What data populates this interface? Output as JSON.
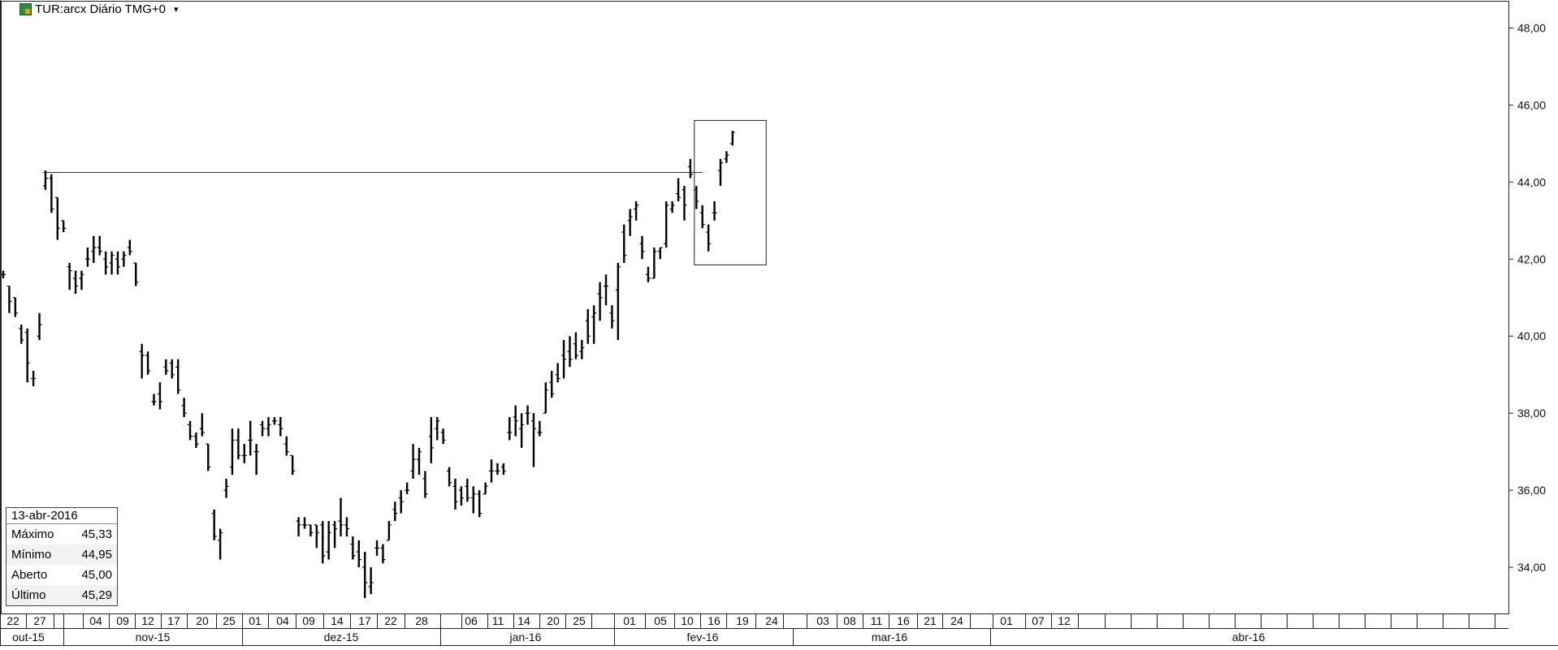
{
  "header": {
    "title": "TUR:arcx Diário TMG+0"
  },
  "info": {
    "date": "13-abr-2016",
    "rows": [
      {
        "label": "Máximo",
        "value": "45,33"
      },
      {
        "label": "Mínimo",
        "value": "44,95"
      },
      {
        "label": "Aberto",
        "value": "45,00"
      },
      {
        "label": "Último",
        "value": "45,29"
      }
    ]
  },
  "chart_data": {
    "type": "ohlc",
    "ylim": [
      32.8,
      48.6
    ],
    "y_ticks": [
      "34,00",
      "36,00",
      "38,00",
      "40,00",
      "42,00",
      "44,00",
      "46,00",
      "48,00"
    ],
    "x_day_labels": [
      "22",
      "27",
      "04",
      "09",
      "12",
      "17",
      "20",
      "25",
      "01",
      "04",
      "09",
      "14",
      "17",
      "22",
      "28",
      "06",
      "11",
      "14",
      "20",
      "25",
      "01",
      "05",
      "10",
      "16",
      "19",
      "24",
      "03",
      "08",
      "11",
      "16",
      "21",
      "24",
      "01",
      "07",
      "12"
    ],
    "x_month_labels": [
      "out-15",
      "nov-15",
      "dez-15",
      "jan-16",
      "fev-16",
      "mar-16",
      "abr-16"
    ],
    "resistance_level": 44.25,
    "highlight_box": {
      "y_low": 41.85,
      "y_high": 45.6
    },
    "bars": [
      [
        41.6,
        41.7,
        41.5,
        41.6
      ],
      [
        41.3,
        41.3,
        40.6,
        40.9
      ],
      [
        41.0,
        41.0,
        40.5,
        40.6
      ],
      [
        40.2,
        40.3,
        39.8,
        39.9
      ],
      [
        40.1,
        40.2,
        38.8,
        39.3
      ],
      [
        38.9,
        39.1,
        38.7,
        38.9
      ],
      [
        40.0,
        40.6,
        39.9,
        40.3
      ],
      [
        43.9,
        44.3,
        43.8,
        44.1
      ],
      [
        44.1,
        44.2,
        43.2,
        43.3
      ],
      [
        43.6,
        43.6,
        42.5,
        42.8
      ],
      [
        43.0,
        43.0,
        42.7,
        42.8
      ],
      [
        41.8,
        41.9,
        41.2,
        41.7
      ],
      [
        41.5,
        41.7,
        41.1,
        41.3
      ],
      [
        41.5,
        41.7,
        41.2,
        41.6
      ],
      [
        42.0,
        42.3,
        41.8,
        42.0
      ],
      [
        42.2,
        42.6,
        41.9,
        42.3
      ],
      [
        42.3,
        42.6,
        42.1,
        42.2
      ],
      [
        42.0,
        42.2,
        41.6,
        41.8
      ],
      [
        41.9,
        42.2,
        41.6,
        42.1
      ],
      [
        42.0,
        42.2,
        41.6,
        41.8
      ],
      [
        42.0,
        42.2,
        41.8,
        42.1
      ],
      [
        42.3,
        42.5,
        42.1,
        42.2
      ],
      [
        41.9,
        41.9,
        41.3,
        41.4
      ],
      [
        39.6,
        39.8,
        38.9,
        39.5
      ],
      [
        39.5,
        39.6,
        39.0,
        39.1
      ],
      [
        38.3,
        38.5,
        38.2,
        38.3
      ],
      [
        38.5,
        38.8,
        38.1,
        38.3
      ],
      [
        39.2,
        39.4,
        39.0,
        39.1
      ],
      [
        39.3,
        39.4,
        38.9,
        39.0
      ],
      [
        39.2,
        39.4,
        38.5,
        38.6
      ],
      [
        38.2,
        38.4,
        37.9,
        38.0
      ],
      [
        37.7,
        37.8,
        37.3,
        37.4
      ],
      [
        37.4,
        37.5,
        37.1,
        37.2
      ],
      [
        37.6,
        38.0,
        37.4,
        37.5
      ],
      [
        37.2,
        37.2,
        36.5,
        36.6
      ],
      [
        35.4,
        35.5,
        34.7,
        34.8
      ],
      [
        34.7,
        35.0,
        34.2,
        34.9
      ],
      [
        36.0,
        36.3,
        35.8,
        36.1
      ],
      [
        36.6,
        37.6,
        36.4,
        37.3
      ],
      [
        37.3,
        37.6,
        36.8,
        36.9
      ],
      [
        36.9,
        37.2,
        36.7,
        36.9
      ],
      [
        37.3,
        37.8,
        36.9,
        37.3
      ],
      [
        37.0,
        37.2,
        36.4,
        37.0
      ],
      [
        37.7,
        37.8,
        37.4,
        37.6
      ],
      [
        37.6,
        37.9,
        37.4,
        37.7
      ],
      [
        37.8,
        37.9,
        37.7,
        37.8
      ],
      [
        37.7,
        37.9,
        37.4,
        37.6
      ],
      [
        37.2,
        37.4,
        36.9,
        37.0
      ],
      [
        36.9,
        36.9,
        36.4,
        36.5
      ],
      [
        35.2,
        35.3,
        34.8,
        35.1
      ],
      [
        35.1,
        35.3,
        35.0,
        35.1
      ],
      [
        35.1,
        35.1,
        34.8,
        34.9
      ],
      [
        35.1,
        35.1,
        34.5,
        34.9
      ],
      [
        35.1,
        35.2,
        34.1,
        34.3
      ],
      [
        34.4,
        35.2,
        34.2,
        34.9
      ],
      [
        35.1,
        35.2,
        34.5,
        35.0
      ],
      [
        35.2,
        35.8,
        34.8,
        35.1
      ],
      [
        35.1,
        35.3,
        34.8,
        35.0
      ],
      [
        34.6,
        34.8,
        34.2,
        34.3
      ],
      [
        34.4,
        34.7,
        34.0,
        34.2
      ],
      [
        34.0,
        34.4,
        33.2,
        33.6
      ],
      [
        33.5,
        34.0,
        33.3,
        33.6
      ],
      [
        34.5,
        34.7,
        34.3,
        34.5
      ],
      [
        34.5,
        34.6,
        34.1,
        34.2
      ],
      [
        34.7,
        35.2,
        34.7,
        35.1
      ],
      [
        35.5,
        35.7,
        35.2,
        35.4
      ],
      [
        35.8,
        36.0,
        35.4,
        35.7
      ],
      [
        36.0,
        36.2,
        35.9,
        36.0
      ],
      [
        36.5,
        37.2,
        36.3,
        36.8
      ],
      [
        36.8,
        37.1,
        36.4,
        37.0
      ],
      [
        36.3,
        36.5,
        35.8,
        35.9
      ],
      [
        37.4,
        37.9,
        36.7,
        37.1
      ],
      [
        37.6,
        37.9,
        37.3,
        37.8
      ],
      [
        37.5,
        37.6,
        37.2,
        37.3
      ],
      [
        36.5,
        36.6,
        36.1,
        36.2
      ],
      [
        36.1,
        36.3,
        35.5,
        35.7
      ],
      [
        36.0,
        36.1,
        35.6,
        35.8
      ],
      [
        36.1,
        36.3,
        35.7,
        35.8
      ],
      [
        35.8,
        36.1,
        35.4,
        35.9
      ],
      [
        35.9,
        36.0,
        35.3,
        35.4
      ],
      [
        35.9,
        36.2,
        35.9,
        36.1
      ],
      [
        36.5,
        36.8,
        36.2,
        36.5
      ],
      [
        36.5,
        36.7,
        36.4,
        36.5
      ],
      [
        36.6,
        36.7,
        36.4,
        36.5
      ],
      [
        37.5,
        37.9,
        37.3,
        37.5
      ],
      [
        37.9,
        38.2,
        37.4,
        37.8
      ],
      [
        37.6,
        38.0,
        37.1,
        37.7
      ],
      [
        38.0,
        38.2,
        37.7,
        38.0
      ],
      [
        37.8,
        38.0,
        36.6,
        37.6
      ],
      [
        37.5,
        37.8,
        37.4,
        37.5
      ],
      [
        38.0,
        38.8,
        38.0,
        38.6
      ],
      [
        38.8,
        39.1,
        38.4,
        38.5
      ],
      [
        39.0,
        39.3,
        38.8,
        38.9
      ],
      [
        39.5,
        39.9,
        38.9,
        39.4
      ],
      [
        39.6,
        40.0,
        39.2,
        39.4
      ],
      [
        39.8,
        40.1,
        39.4,
        39.5
      ],
      [
        39.6,
        39.9,
        39.4,
        39.7
      ],
      [
        40.4,
        40.7,
        39.8,
        40.0
      ],
      [
        40.5,
        40.8,
        39.8,
        40.6
      ],
      [
        41.1,
        41.4,
        40.4,
        41.0
      ],
      [
        41.3,
        41.6,
        40.8,
        41.3
      ],
      [
        40.6,
        40.8,
        40.2,
        40.4
      ],
      [
        41.2,
        41.9,
        39.9,
        41.8
      ],
      [
        42.7,
        42.9,
        41.9,
        42.1
      ],
      [
        43.0,
        43.3,
        42.6,
        43.1
      ],
      [
        43.3,
        43.5,
        43.0,
        43.4
      ],
      [
        42.4,
        42.6,
        42.0,
        42.2
      ],
      [
        41.6,
        41.8,
        41.4,
        41.5
      ],
      [
        41.5,
        42.3,
        41.5,
        42.2
      ],
      [
        42.2,
        42.3,
        42.0,
        42.3
      ],
      [
        42.4,
        43.5,
        42.3,
        43.4
      ],
      [
        43.3,
        43.5,
        43.2,
        43.4
      ],
      [
        43.7,
        44.1,
        43.5,
        43.6
      ],
      [
        43.8,
        43.9,
        43.0,
        43.4
      ],
      [
        44.4,
        44.6,
        44.1,
        44.2
      ],
      [
        43.8,
        43.9,
        43.3,
        43.5
      ],
      [
        43.2,
        43.4,
        42.8,
        42.9
      ],
      [
        42.7,
        42.9,
        42.2,
        42.4
      ],
      [
        43.2,
        43.5,
        43.0,
        43.2
      ],
      [
        44.3,
        44.6,
        43.9,
        44.5
      ],
      [
        44.6,
        44.8,
        44.5,
        44.7
      ],
      [
        45.0,
        45.33,
        44.95,
        45.29
      ]
    ]
  }
}
